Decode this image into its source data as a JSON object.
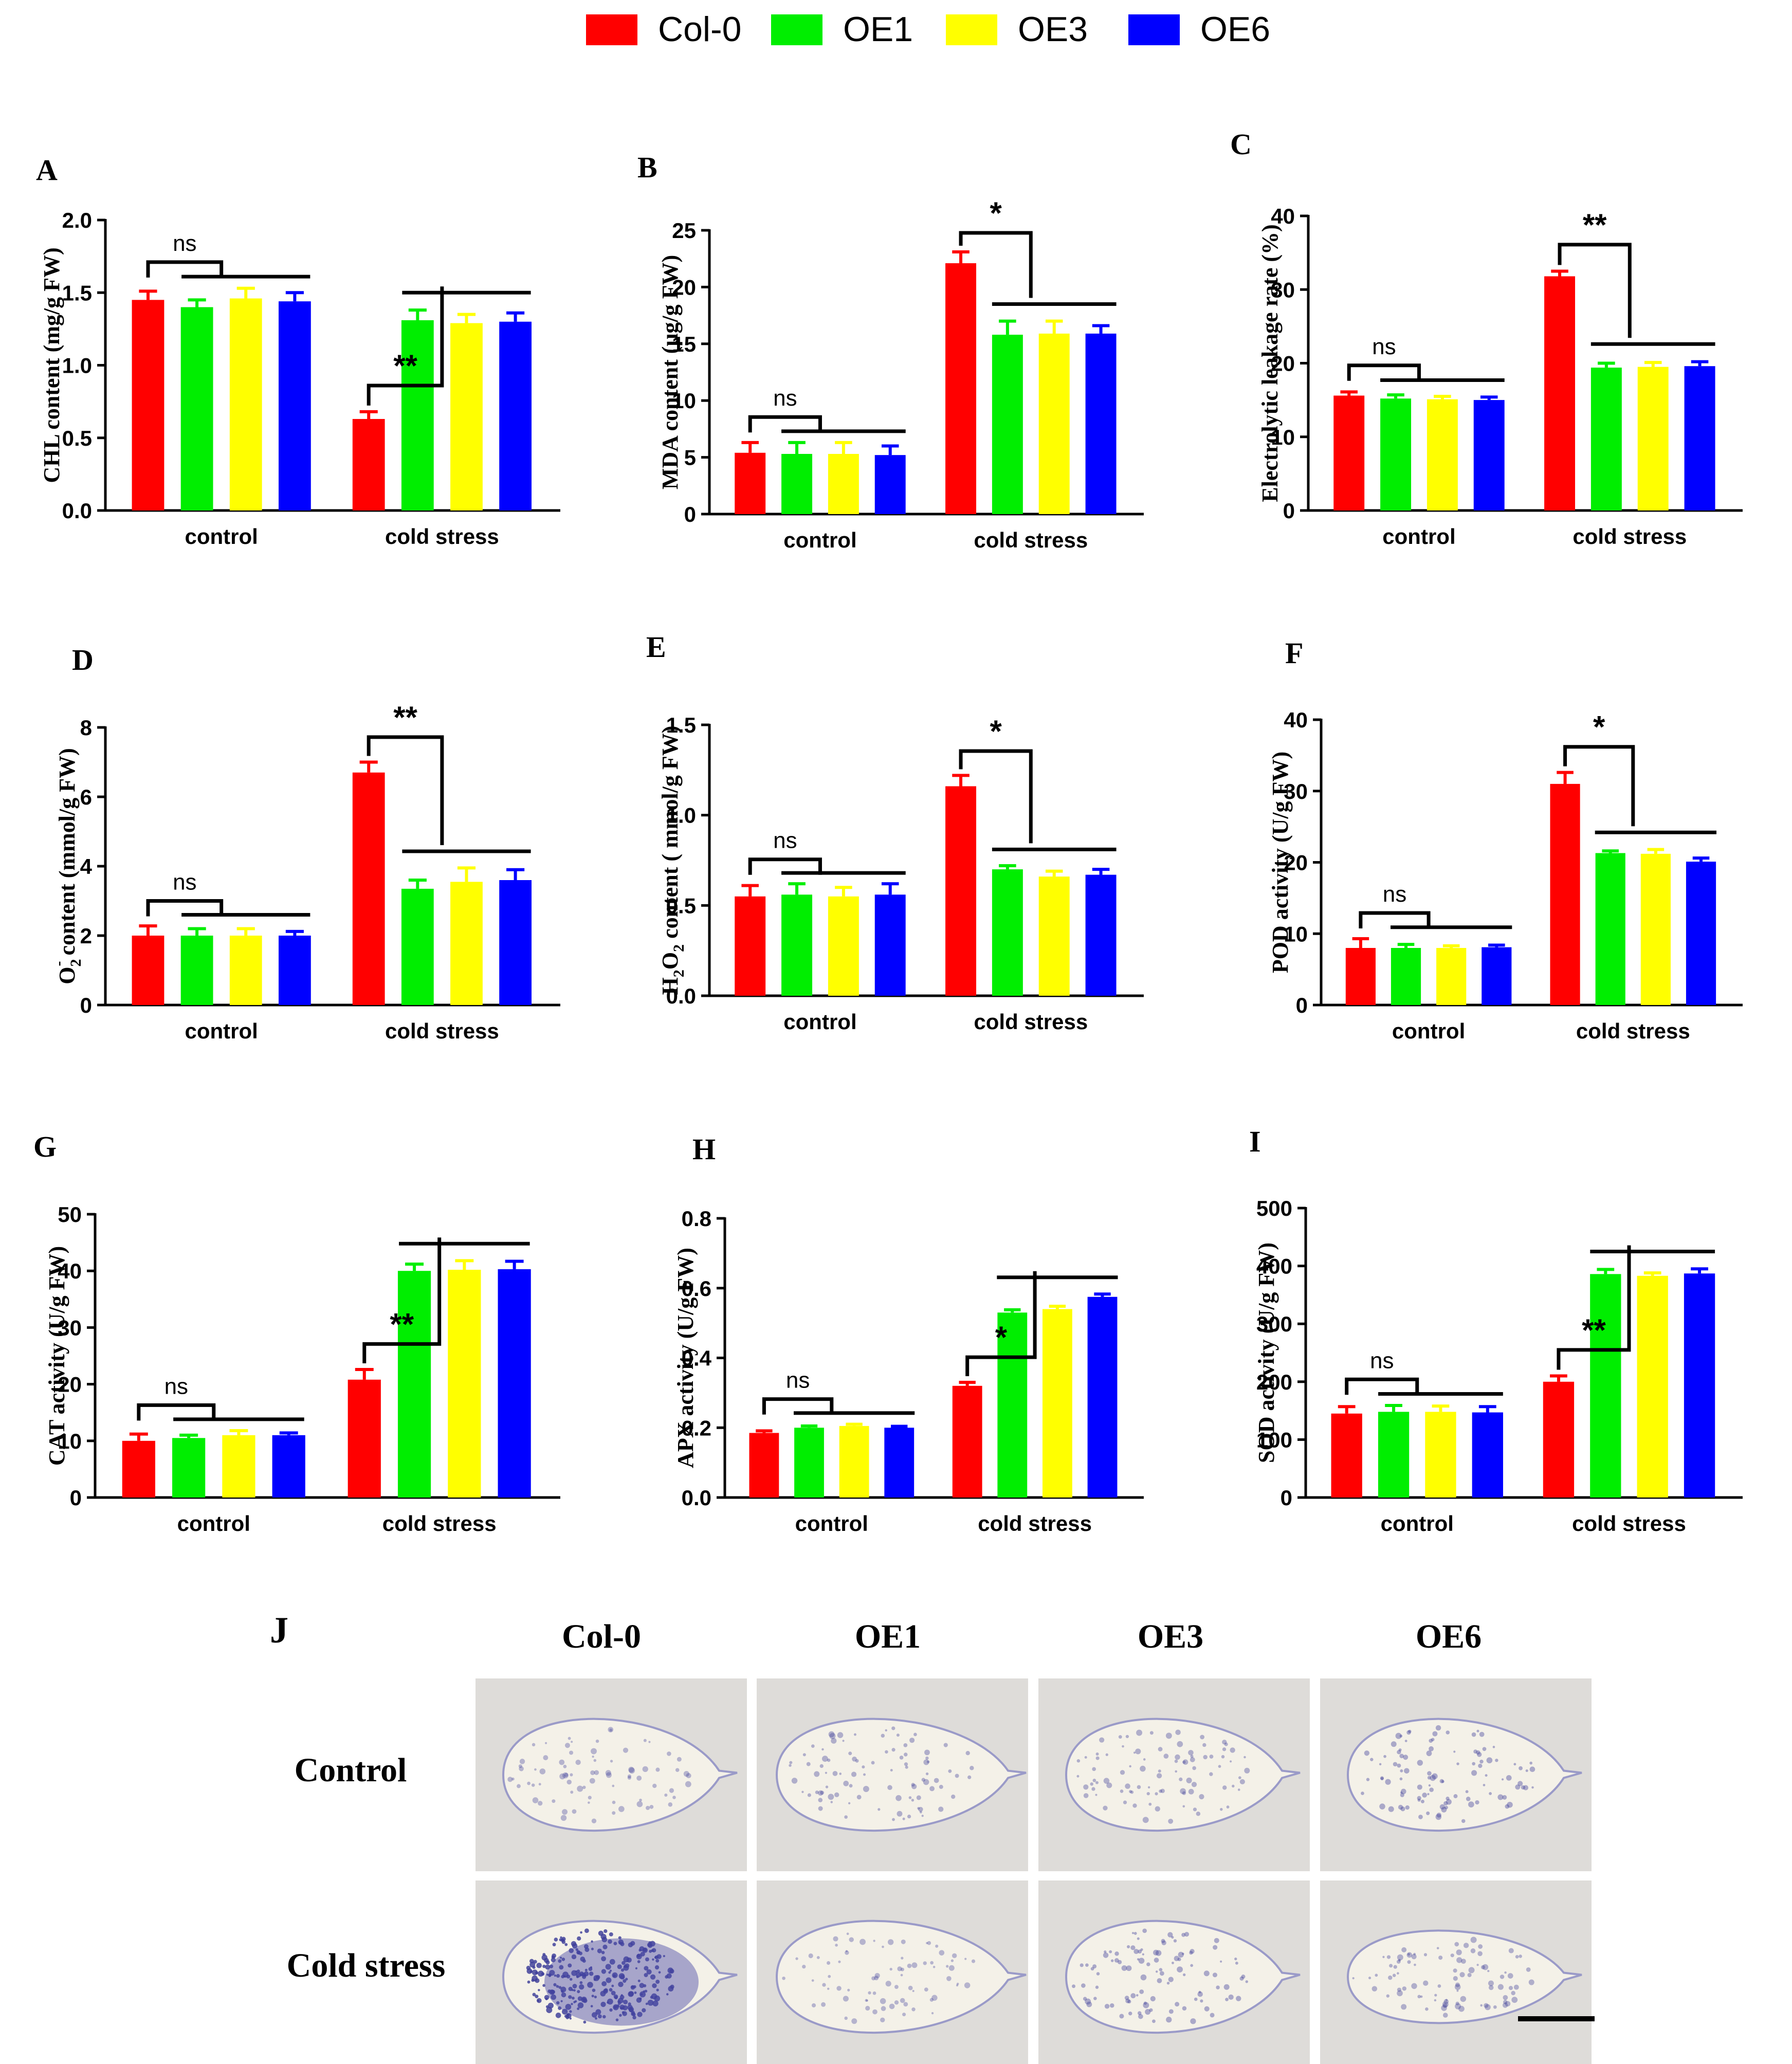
{
  "colors": {
    "Col-0": "#ff0000",
    "OE1": "#00ee00",
    "OE3": "#ffff00",
    "OE6": "#0000ff"
  },
  "legend": [
    "Col-0",
    "OE1",
    "OE3",
    "OE6"
  ],
  "chart_data": [
    {
      "letter": "A",
      "type": "bar",
      "ylabel": "CHL content (mg/g FW)",
      "categories": [
        "control",
        "cold stress"
      ],
      "ylim": [
        0,
        2.0
      ],
      "ticks": [
        "0.0",
        "0.5",
        "1.0",
        "1.5",
        "2.0"
      ],
      "series": [
        {
          "name": "Col-0",
          "values": [
            1.45,
            0.63
          ],
          "err": [
            0.06,
            0.05
          ]
        },
        {
          "name": "OE1",
          "values": [
            1.4,
            1.31
          ],
          "err": [
            0.05,
            0.07
          ]
        },
        {
          "name": "OE3",
          "values": [
            1.46,
            1.29
          ],
          "err": [
            0.07,
            0.06
          ]
        },
        {
          "name": "OE6",
          "values": [
            1.44,
            1.3
          ],
          "err": [
            0.06,
            0.06
          ]
        }
      ],
      "sig": [
        "ns",
        "**"
      ]
    },
    {
      "letter": "B",
      "type": "bar",
      "ylabel": "MDA content (μg/g FW)",
      "categories": [
        "control",
        "cold stress"
      ],
      "ylim": [
        0,
        25
      ],
      "ticks": [
        "0",
        "5",
        "10",
        "15",
        "20",
        "25"
      ],
      "series": [
        {
          "name": "Col-0",
          "values": [
            5.4,
            22.1
          ],
          "err": [
            0.9,
            1.0
          ]
        },
        {
          "name": "OE1",
          "values": [
            5.3,
            15.8
          ],
          "err": [
            1.0,
            1.2
          ]
        },
        {
          "name": "OE3",
          "values": [
            5.3,
            15.9
          ],
          "err": [
            1.0,
            1.1
          ]
        },
        {
          "name": "OE6",
          "values": [
            5.2,
            15.9
          ],
          "err": [
            0.8,
            0.7
          ]
        }
      ],
      "sig": [
        "ns",
        "*"
      ]
    },
    {
      "letter": "C",
      "type": "bar",
      "ylabel": "Electrolytic leakage rate (%)",
      "categories": [
        "control",
        "cold stress"
      ],
      "ylim": [
        0,
        40
      ],
      "ticks": [
        "0",
        "10",
        "20",
        "30",
        "40"
      ],
      "series": [
        {
          "name": "Col-0",
          "values": [
            15.6,
            31.8
          ],
          "err": [
            0.5,
            0.7
          ]
        },
        {
          "name": "OE1",
          "values": [
            15.2,
            19.4
          ],
          "err": [
            0.5,
            0.6
          ]
        },
        {
          "name": "OE3",
          "values": [
            15.1,
            19.5
          ],
          "err": [
            0.4,
            0.6
          ]
        },
        {
          "name": "OE6",
          "values": [
            15.0,
            19.6
          ],
          "err": [
            0.4,
            0.6
          ]
        }
      ],
      "sig": [
        "ns",
        "**"
      ]
    },
    {
      "letter": "D",
      "type": "bar",
      "ylabel": "content (mmol/g FW)",
      "ylabel_chem": "O2-",
      "categories": [
        "control",
        "cold stress"
      ],
      "ylim": [
        0,
        8
      ],
      "ticks": [
        "0",
        "2",
        "4",
        "6",
        "8"
      ],
      "series": [
        {
          "name": "Col-0",
          "values": [
            2.0,
            6.7
          ],
          "err": [
            0.28,
            0.3
          ]
        },
        {
          "name": "OE1",
          "values": [
            2.0,
            3.35
          ],
          "err": [
            0.2,
            0.25
          ]
        },
        {
          "name": "OE3",
          "values": [
            2.0,
            3.55
          ],
          "err": [
            0.2,
            0.4
          ]
        },
        {
          "name": "OE6",
          "values": [
            2.0,
            3.6
          ],
          "err": [
            0.12,
            0.3
          ]
        }
      ],
      "sig": [
        "ns",
        "**"
      ]
    },
    {
      "letter": "E",
      "type": "bar",
      "ylabel": "content ( mmol/g FW)",
      "ylabel_chem": "H2O2",
      "categories": [
        "control",
        "cold stress"
      ],
      "ylim": [
        0,
        1.5
      ],
      "ticks": [
        "0.0",
        "0.5",
        "1.0",
        "1.5"
      ],
      "series": [
        {
          "name": "Col-0",
          "values": [
            0.55,
            1.16
          ],
          "err": [
            0.06,
            0.06
          ]
        },
        {
          "name": "OE1",
          "values": [
            0.56,
            0.7
          ],
          "err": [
            0.06,
            0.02
          ]
        },
        {
          "name": "OE3",
          "values": [
            0.55,
            0.66
          ],
          "err": [
            0.05,
            0.03
          ]
        },
        {
          "name": "OE6",
          "values": [
            0.56,
            0.67
          ],
          "err": [
            0.06,
            0.03
          ]
        }
      ],
      "sig": [
        "ns",
        "*"
      ]
    },
    {
      "letter": "F",
      "type": "bar",
      "ylabel": "POD activity (U/g FW)",
      "categories": [
        "control",
        "cold stress"
      ],
      "ylim": [
        0,
        40
      ],
      "ticks": [
        "0",
        "10",
        "20",
        "30",
        "40"
      ],
      "series": [
        {
          "name": "Col-0",
          "values": [
            8.0,
            31.0
          ],
          "err": [
            1.3,
            1.6
          ]
        },
        {
          "name": "OE1",
          "values": [
            8.0,
            21.3
          ],
          "err": [
            0.5,
            0.3
          ]
        },
        {
          "name": "OE3",
          "values": [
            8.0,
            21.2
          ],
          "err": [
            0.3,
            0.6
          ]
        },
        {
          "name": "OE6",
          "values": [
            8.1,
            20.1
          ],
          "err": [
            0.3,
            0.5
          ]
        }
      ],
      "sig": [
        "ns",
        "*"
      ]
    },
    {
      "letter": "G",
      "type": "bar",
      "ylabel": "CAT activity (U/g FW)",
      "categories": [
        "control",
        "cold stress"
      ],
      "ylim": [
        0,
        50
      ],
      "ticks": [
        "0",
        "10",
        "20",
        "30",
        "40",
        "50"
      ],
      "series": [
        {
          "name": "Col-0",
          "values": [
            10.0,
            20.8
          ],
          "err": [
            1.2,
            1.8
          ]
        },
        {
          "name": "OE1",
          "values": [
            10.5,
            40.0
          ],
          "err": [
            0.5,
            1.2
          ]
        },
        {
          "name": "OE3",
          "values": [
            11.0,
            40.2
          ],
          "err": [
            0.8,
            1.6
          ]
        },
        {
          "name": "OE6",
          "values": [
            11.0,
            40.3
          ],
          "err": [
            0.4,
            1.4
          ]
        }
      ],
      "sig": [
        "ns",
        "**"
      ]
    },
    {
      "letter": "H",
      "type": "bar",
      "ylabel": "APX activity (U/g FW)",
      "categories": [
        "control",
        "cold stress"
      ],
      "ylim": [
        0,
        0.8
      ],
      "ticks": [
        "0.0",
        "0.2",
        "0.4",
        "0.6",
        "0.8"
      ],
      "series": [
        {
          "name": "Col-0",
          "values": [
            0.185,
            0.32
          ],
          "err": [
            0.006,
            0.01
          ]
        },
        {
          "name": "OE1",
          "values": [
            0.2,
            0.53
          ],
          "err": [
            0.005,
            0.008
          ]
        },
        {
          "name": "OE3",
          "values": [
            0.205,
            0.54
          ],
          "err": [
            0.005,
            0.008
          ]
        },
        {
          "name": "OE6",
          "values": [
            0.2,
            0.575
          ],
          "err": [
            0.004,
            0.008
          ]
        }
      ],
      "sig": [
        "ns",
        "*"
      ]
    },
    {
      "letter": "I",
      "type": "bar",
      "ylabel": "SOD activity (U/g FW)",
      "categories": [
        "control",
        "cold stress"
      ],
      "ylim": [
        0,
        500
      ],
      "ticks": [
        "0",
        "100",
        "200",
        "300",
        "400",
        "500"
      ],
      "series": [
        {
          "name": "Col-0",
          "values": [
            145,
            200
          ],
          "err": [
            12,
            10
          ]
        },
        {
          "name": "OE1",
          "values": [
            148,
            386
          ],
          "err": [
            11,
            8
          ]
        },
        {
          "name": "OE3",
          "values": [
            148,
            383
          ],
          "err": [
            10,
            5
          ]
        },
        {
          "name": "OE6",
          "values": [
            147,
            387
          ],
          "err": [
            10,
            8
          ]
        }
      ],
      "sig": [
        "ns",
        "**"
      ]
    }
  ],
  "panel_j": {
    "letter": "J",
    "columns": [
      "Col-0",
      "OE1",
      "OE3",
      "OE6"
    ],
    "rows": [
      "Control",
      "Cold stress"
    ]
  }
}
